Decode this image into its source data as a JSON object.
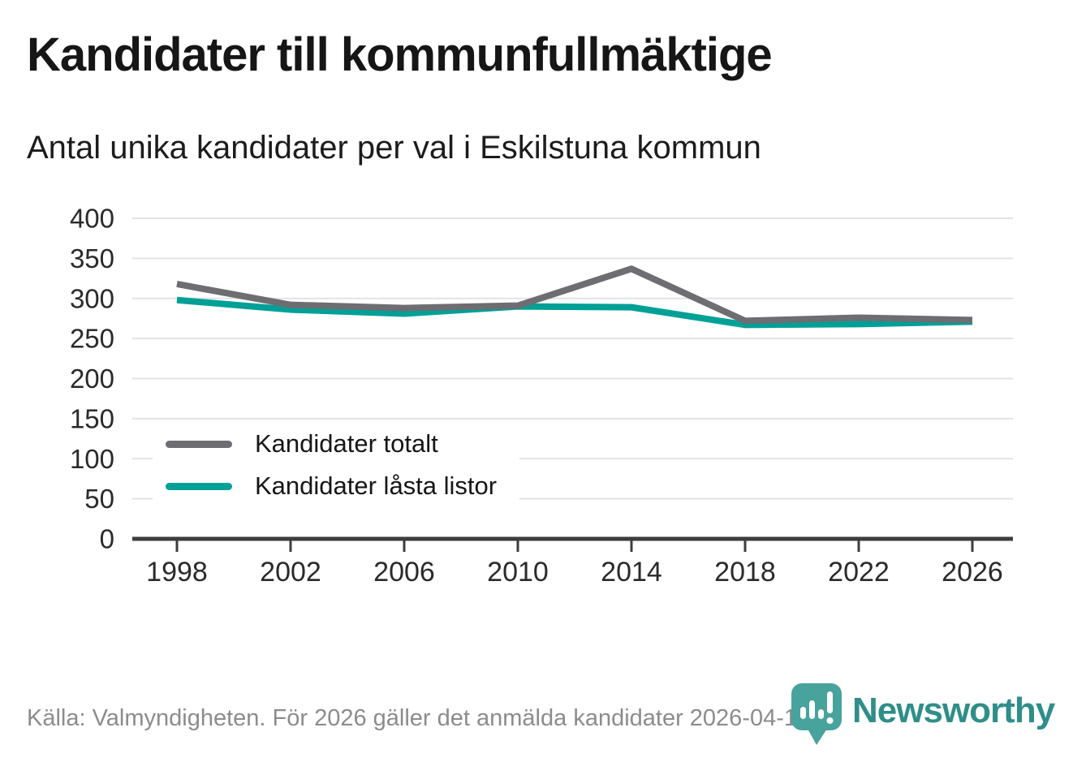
{
  "header": {
    "title": "Kandidater till kommunfullmäktige",
    "subtitle": "Antal unika kandidater per val i Eskilstuna kommun"
  },
  "chart_data": {
    "type": "line",
    "title": "Kandidater till kommunfullmäktige",
    "subtitle": "Antal unika kandidater per val i Eskilstuna kommun",
    "x": [
      1998,
      2002,
      2006,
      2010,
      2014,
      2018,
      2022,
      2026
    ],
    "series": [
      {
        "name": "Kandidater totalt",
        "color": "#6d6d72",
        "values": [
          318,
          292,
          288,
          291,
          337,
          272,
          276,
          273
        ]
      },
      {
        "name": "Kandidater låsta listor",
        "color": "#00a097",
        "values": [
          298,
          286,
          281,
          290,
          289,
          267,
          268,
          271
        ]
      }
    ],
    "xlabel": "",
    "ylabel": "",
    "ylim": [
      0,
      400
    ],
    "yticks": [
      0,
      50,
      100,
      150,
      200,
      250,
      300,
      350,
      400
    ],
    "grid": "horizontal",
    "legend_position": "inside-bottom-left"
  },
  "footer": {
    "source": "Källa: Valmyndigheten. För 2026 gäller det anmälda kandidater 2026-04-10.",
    "logo_text": "Newsworthy"
  },
  "colors": {
    "grid": "#e3e3e3",
    "axis": "#3d3d3d",
    "tick_label": "#2a2a2a",
    "series_gray": "#6d6d72",
    "series_teal": "#00a097",
    "logo_text_teal": "#2f8e89",
    "logo_icon_teal": "#48a39c",
    "muted_text": "#8c8c8c"
  }
}
